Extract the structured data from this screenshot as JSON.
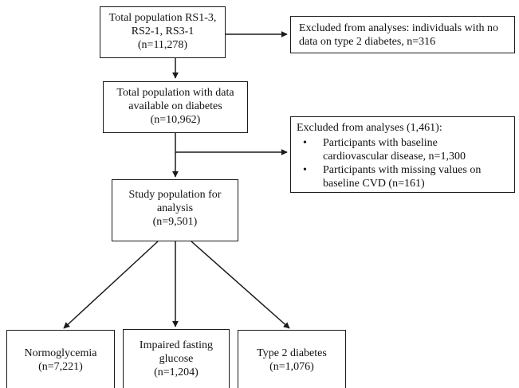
{
  "boxes": {
    "total": {
      "lines": [
        "Total population RS1-3,",
        "RS2-1, RS3-1",
        "(n=11,278)"
      ]
    },
    "excluded_1": {
      "lines": [
        "Excluded from analyses: individuals with no",
        "data on type 2 diabetes, n=316"
      ]
    },
    "diabetes_data": {
      "lines": [
        "Total population with data",
        "available on diabetes",
        "(n=10,962)"
      ]
    },
    "excluded_2": {
      "title": "Excluded from analyses (1,461):",
      "bullets": [
        {
          "lines": [
            "Participants with baseline",
            "cardiovascular disease, n=1,300"
          ]
        },
        {
          "lines": [
            "Participants with missing values on",
            "baseline CVD (n=161)"
          ]
        }
      ]
    },
    "study": {
      "lines": [
        "Study population for",
        "analysis",
        "(n=9,501)"
      ]
    },
    "normo": {
      "lines": [
        "Normoglycemia",
        "(n=7,221)"
      ]
    },
    "ifg": {
      "lines": [
        "Impaired fasting",
        "glucose",
        "(n=1,204)"
      ]
    },
    "t2d": {
      "lines": [
        "Type 2 diabetes",
        "(n=1,076)"
      ]
    }
  },
  "bullet_glyph": "•"
}
